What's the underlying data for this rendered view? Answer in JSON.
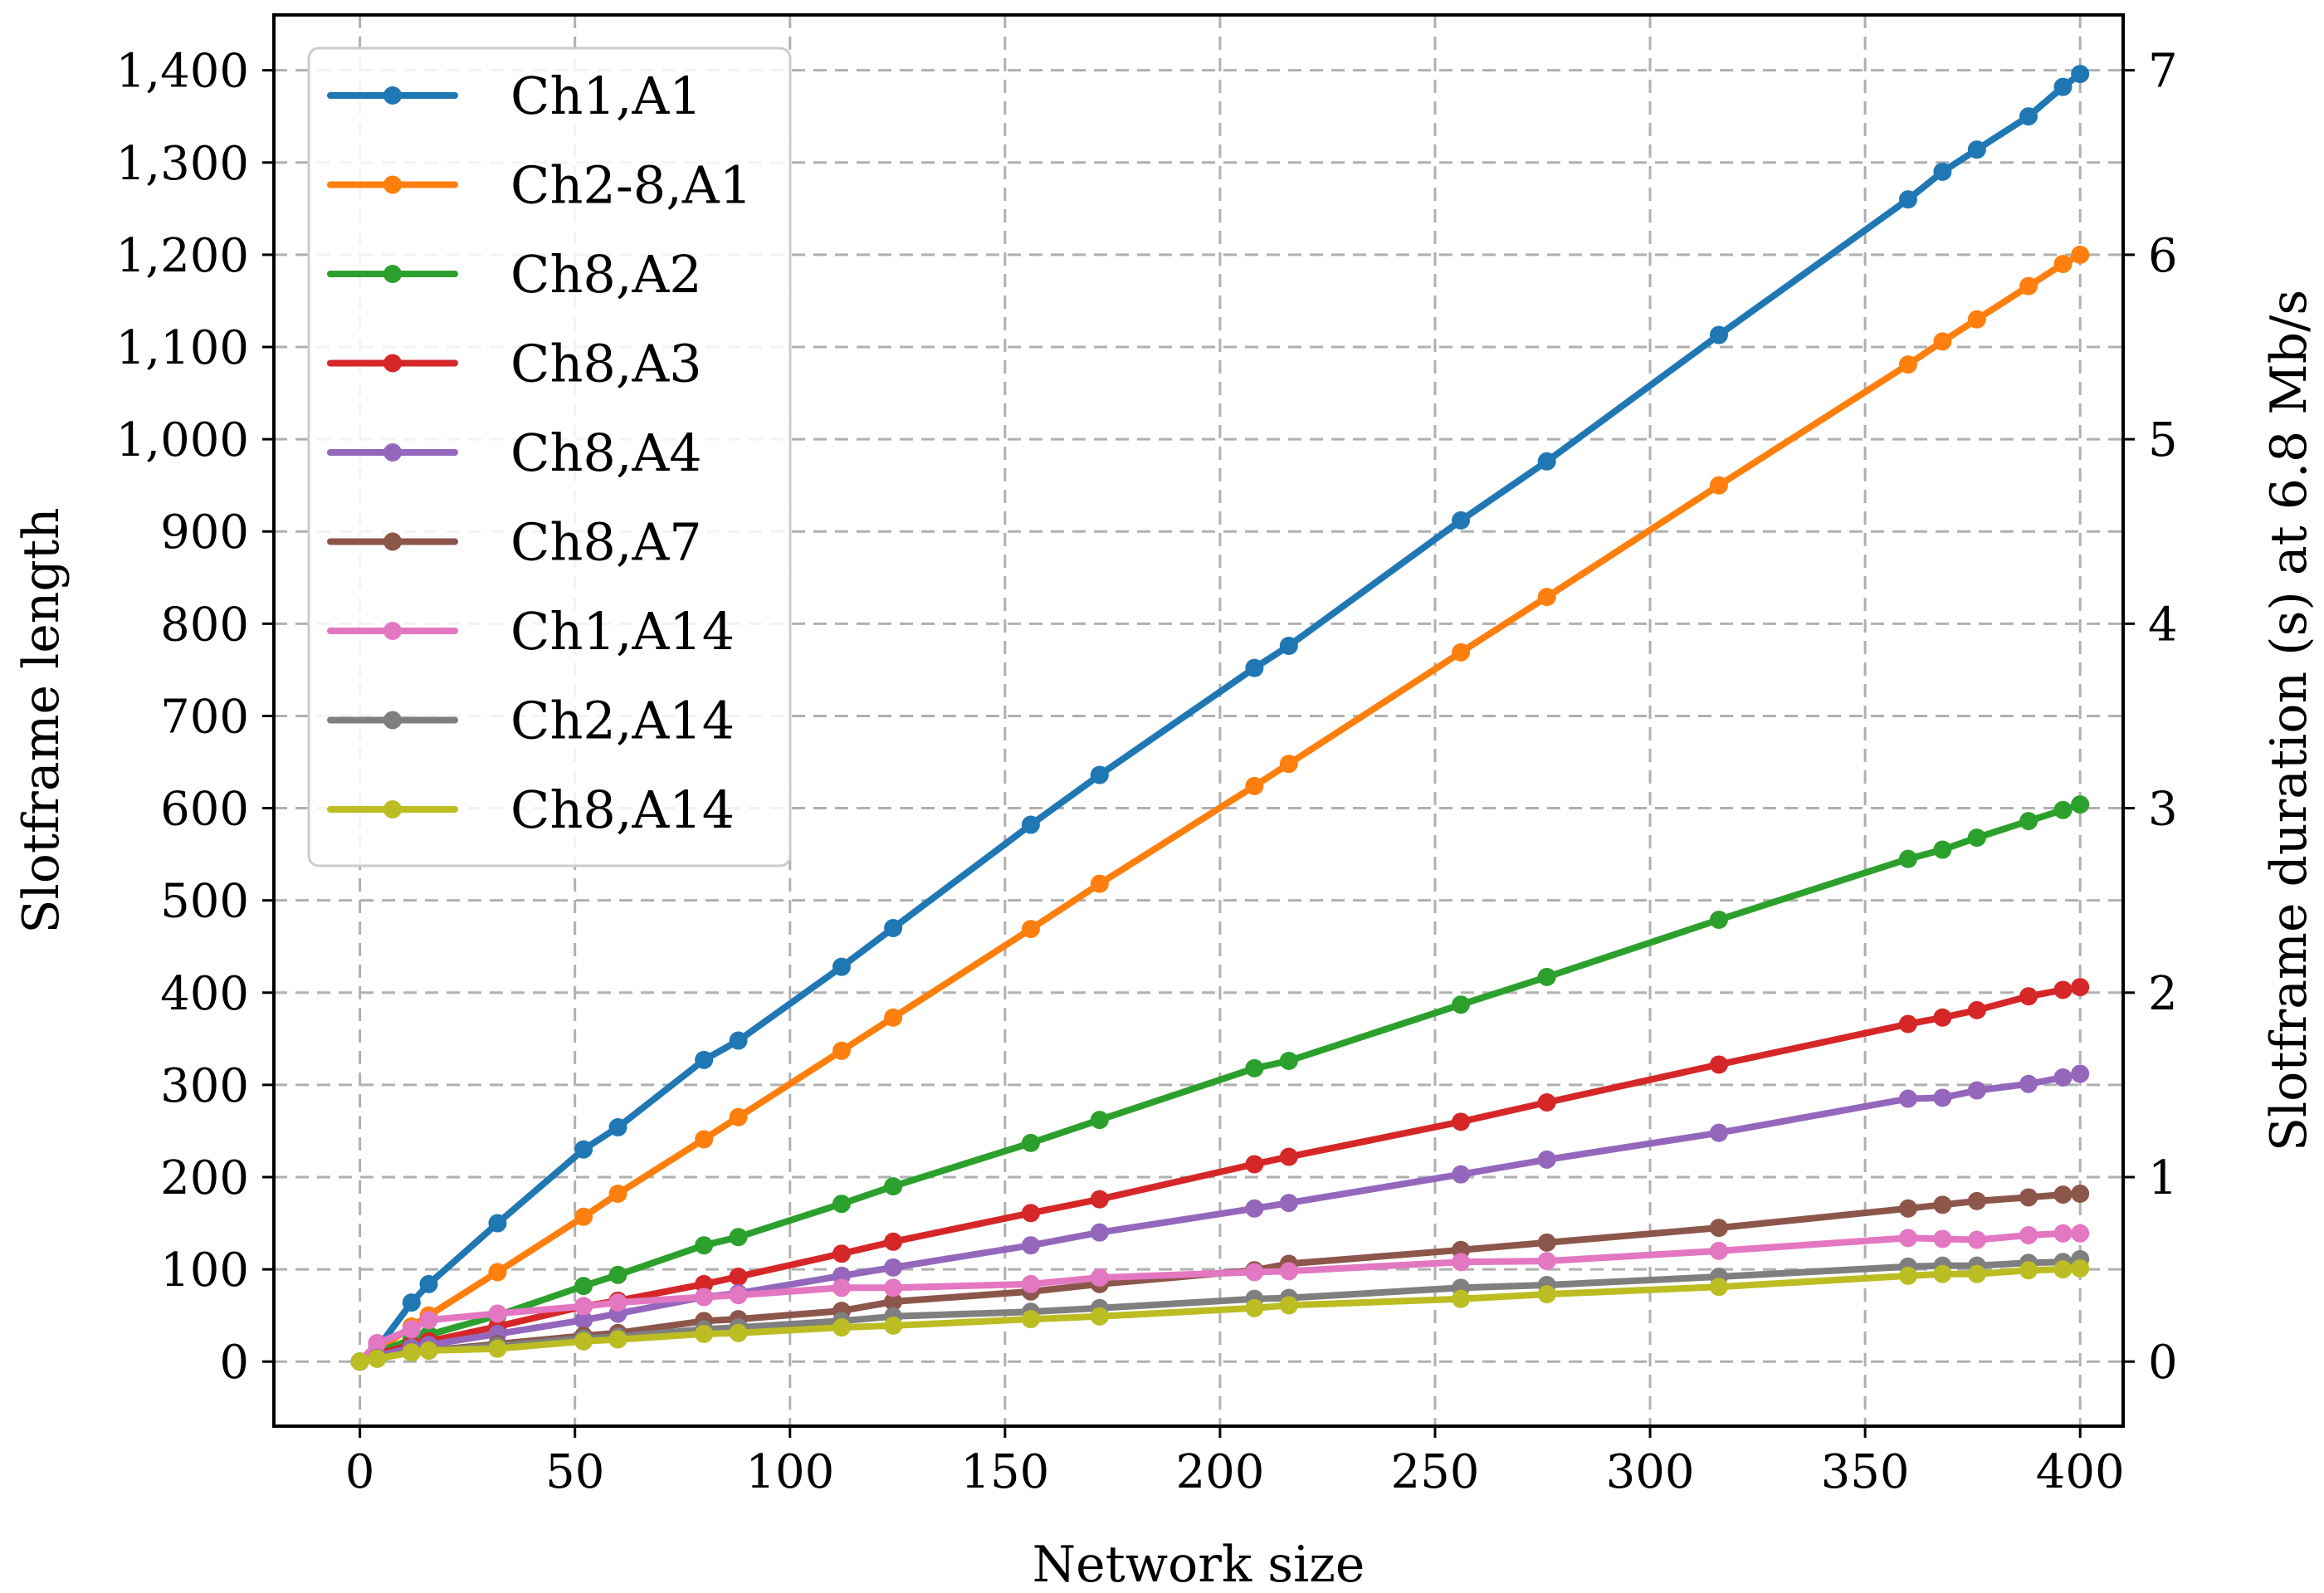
{
  "chart_data": {
    "type": "line",
    "xlabel": "Network size",
    "ylabel": "Slotframe length",
    "y2label": "Slotframe duration (s) at 6.8 Mb/s",
    "xlim": [
      -20,
      410
    ],
    "ylim": [
      -70,
      1460
    ],
    "y2lim": [
      -0.35,
      7.3
    ],
    "grid": true,
    "legend_position": "top-left",
    "x_ticks": [
      0,
      50,
      100,
      150,
      200,
      250,
      300,
      350,
      400
    ],
    "x_tick_labels": [
      "0",
      "50",
      "100",
      "150",
      "200",
      "250",
      "300",
      "350",
      "400"
    ],
    "y_ticks": [
      0,
      100,
      200,
      300,
      400,
      500,
      600,
      700,
      800,
      900,
      1000,
      1100,
      1200,
      1300,
      1400
    ],
    "y_tick_labels": [
      "0",
      "100",
      "200",
      "300",
      "400",
      "500",
      "600",
      "700",
      "800",
      "900",
      "1,000",
      "1,100",
      "1,200",
      "1,300",
      "1,400"
    ],
    "y2_ticks": [
      0,
      1,
      2,
      3,
      4,
      5,
      6,
      7
    ],
    "y2_tick_labels": [
      "0",
      "1",
      "2",
      "3",
      "4",
      "5",
      "6",
      "7"
    ],
    "x": [
      0,
      4,
      12,
      16,
      32,
      52,
      60,
      80,
      88,
      112,
      124,
      156,
      172,
      208,
      216,
      256,
      276,
      316,
      360,
      368,
      376,
      388,
      396,
      400
    ],
    "series": [
      {
        "name": "Ch1,A1",
        "color": "#1f77b4",
        "values": [
          0,
          14,
          64,
          84,
          150,
          230,
          254,
          327,
          348,
          428,
          470,
          582,
          636,
          752,
          776,
          912,
          976,
          1113,
          1260,
          1290,
          1314,
          1350,
          1382,
          1396
        ]
      },
      {
        "name": "Ch2-8,A1",
        "color": "#ff7f0e",
        "values": [
          0,
          12,
          38,
          50,
          97,
          157,
          182,
          241,
          265,
          337,
          373,
          469,
          518,
          624,
          648,
          769,
          829,
          950,
          1081,
          1106,
          1130,
          1166,
          1190,
          1200
        ]
      },
      {
        "name": "Ch8,A2",
        "color": "#2ca02c",
        "values": [
          0,
          10,
          24,
          29,
          50,
          82,
          94,
          126,
          135,
          171,
          190,
          237,
          262,
          318,
          326,
          387,
          417,
          479,
          545,
          555,
          568,
          586,
          598,
          604
        ]
      },
      {
        "name": "Ch8,A3",
        "color": "#d62728",
        "values": [
          0,
          8,
          18,
          22,
          38,
          60,
          66,
          84,
          92,
          117,
          130,
          161,
          176,
          214,
          222,
          260,
          281,
          322,
          366,
          373,
          381,
          396,
          403,
          406
        ]
      },
      {
        "name": "Ch8,A4",
        "color": "#9467bd",
        "values": [
          0,
          6,
          15,
          18,
          30,
          45,
          52,
          70,
          74,
          93,
          102,
          126,
          140,
          166,
          172,
          203,
          219,
          248,
          285,
          286,
          294,
          301,
          308,
          312
        ]
      },
      {
        "name": "Ch8,A7",
        "color": "#8c564b",
        "values": [
          0,
          4,
          10,
          12,
          19,
          28,
          31,
          44,
          46,
          55,
          65,
          76,
          84,
          99,
          106,
          121,
          129,
          145,
          166,
          170,
          174,
          178,
          181,
          182
        ]
      },
      {
        "name": "Ch1,A14",
        "color": "#e377c2",
        "values": [
          0,
          20,
          35,
          45,
          52,
          60,
          64,
          70,
          72,
          80,
          80,
          84,
          91,
          97,
          98,
          108,
          109,
          120,
          134,
          133,
          132,
          137,
          139,
          139
        ]
      },
      {
        "name": "Ch2,A14",
        "color": "#7f7f7f",
        "values": [
          0,
          4,
          10,
          12,
          17,
          25,
          27,
          35,
          37,
          44,
          49,
          54,
          58,
          68,
          69,
          80,
          83,
          92,
          103,
          104,
          104,
          107,
          108,
          111
        ]
      },
      {
        "name": "Ch8,A14",
        "color": "#bcbd22",
        "values": [
          0,
          3,
          10,
          12,
          14,
          22,
          24,
          30,
          31,
          37,
          39,
          46,
          49,
          58,
          61,
          68,
          73,
          81,
          93,
          95,
          95,
          99,
          100,
          101
        ]
      }
    ]
  }
}
